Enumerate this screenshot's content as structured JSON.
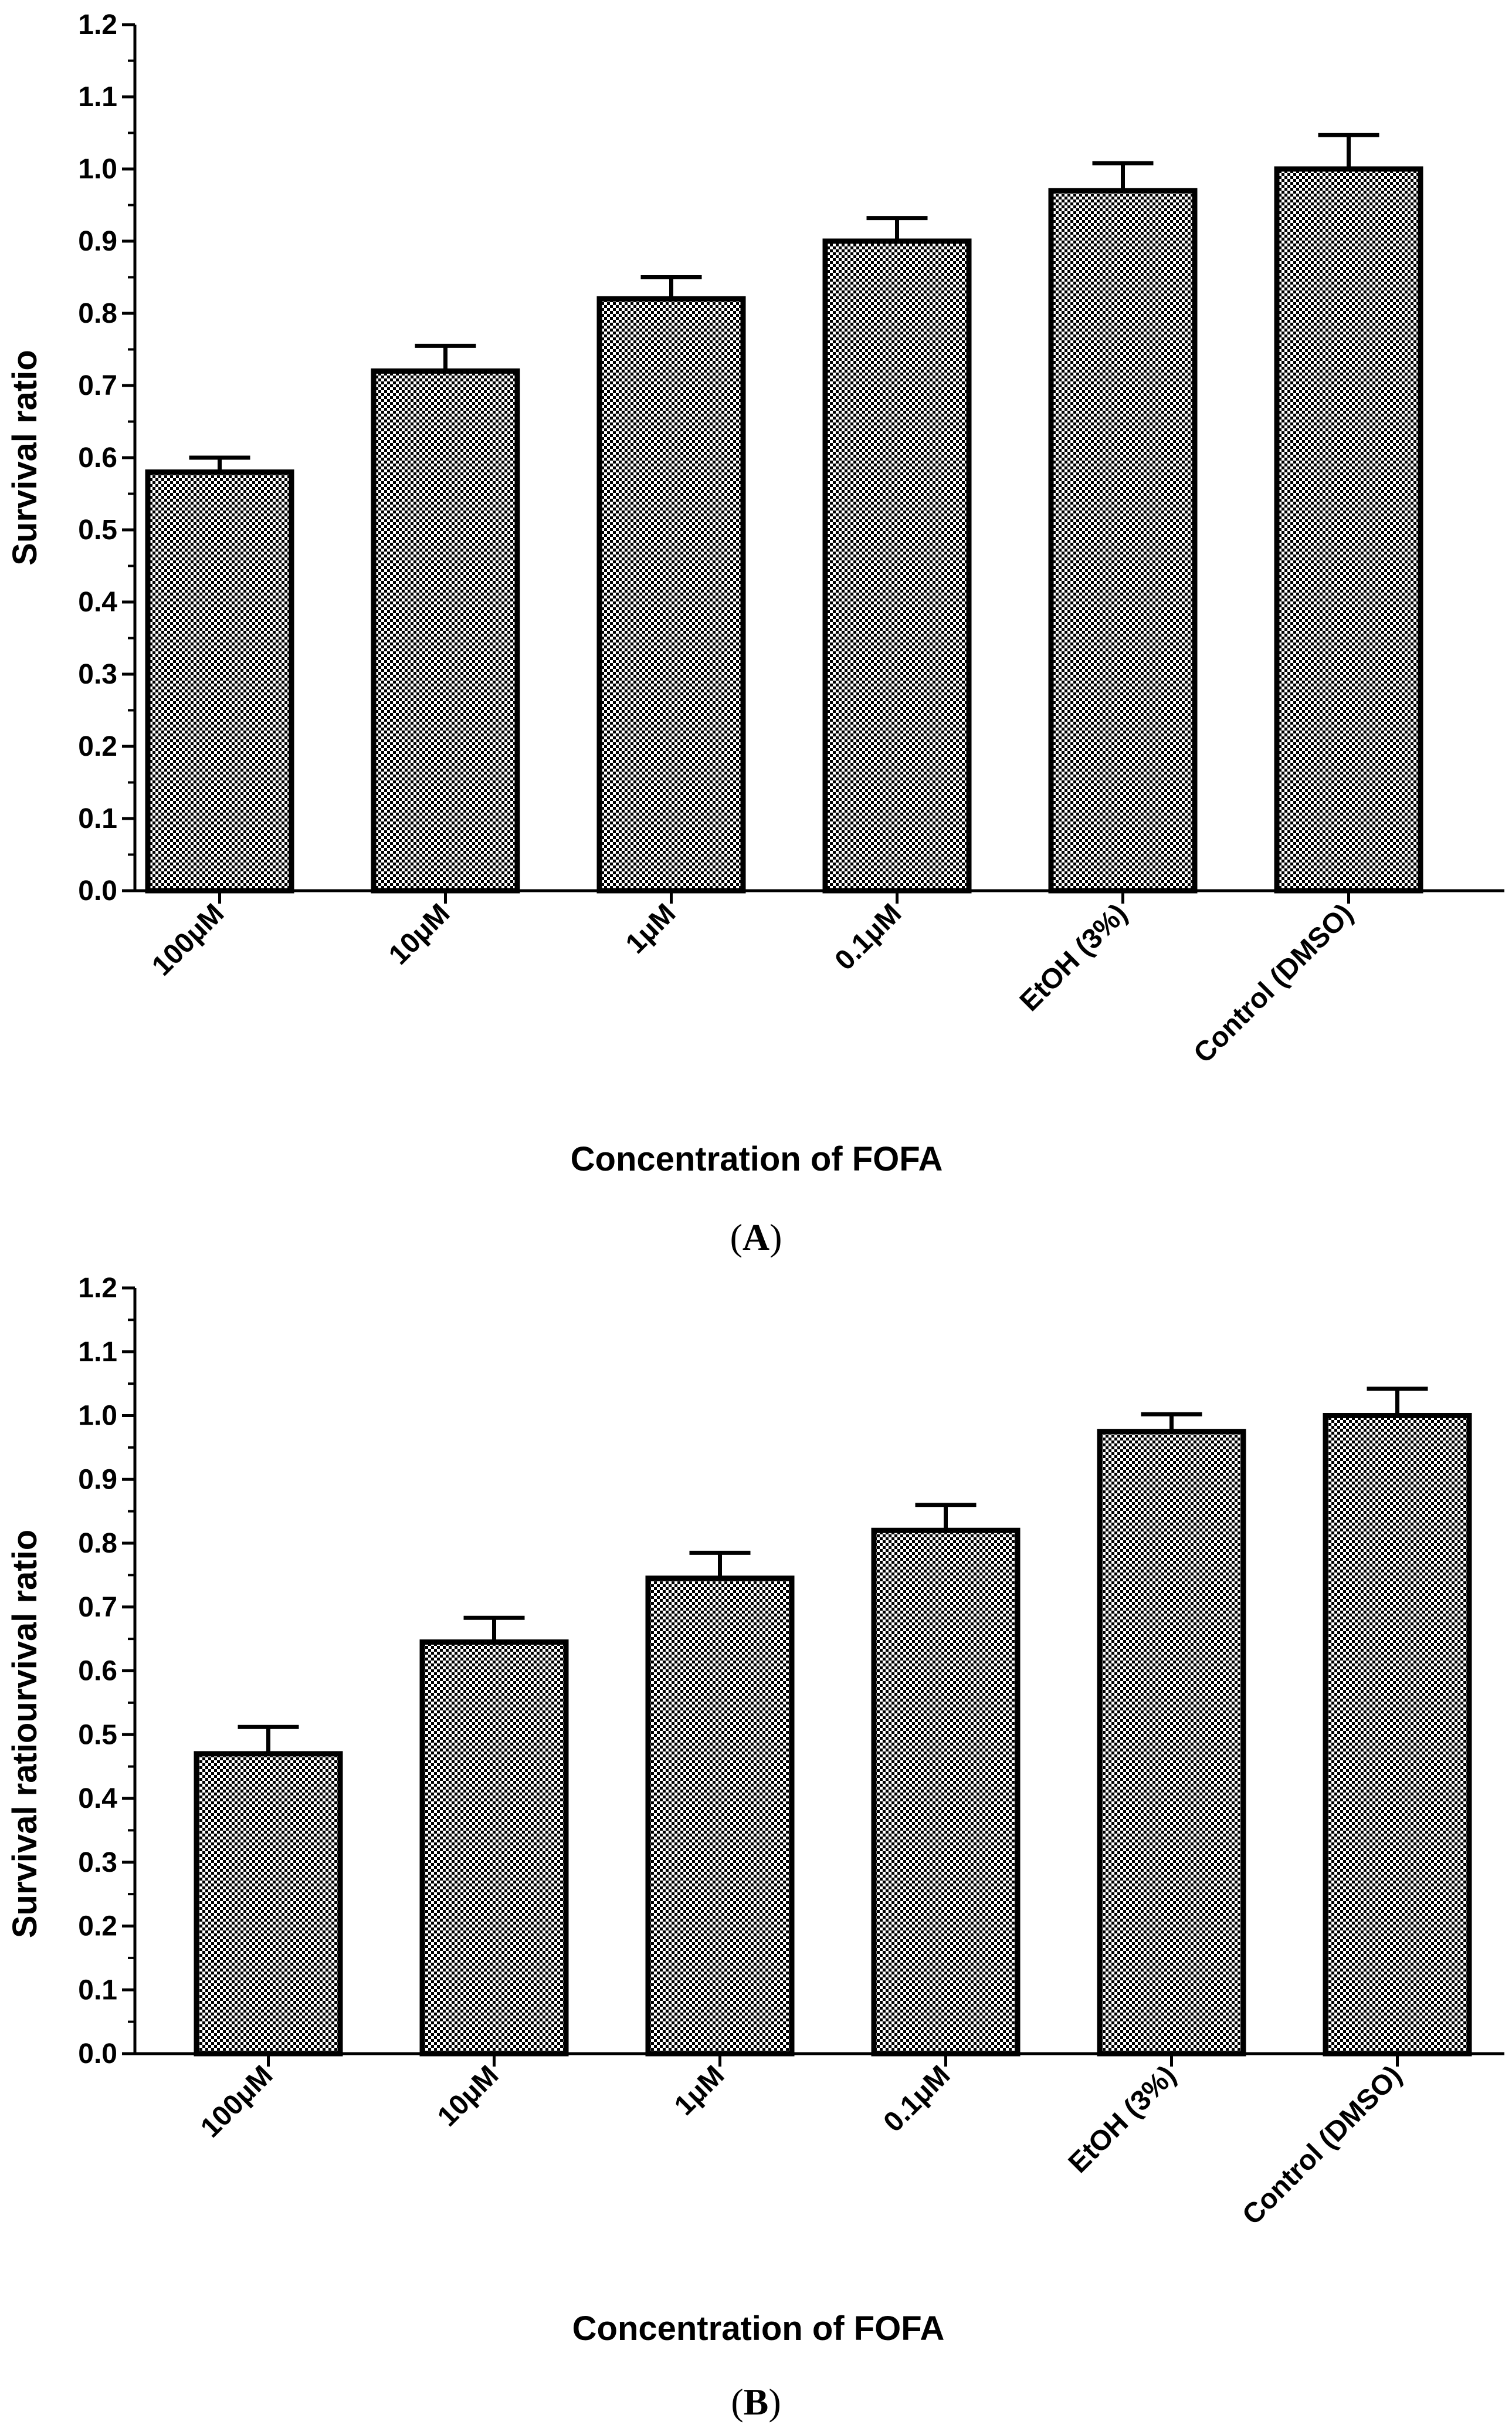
{
  "figure": {
    "pattern_color": "#000000",
    "background_color": "#ffffff"
  },
  "chart_data": [
    {
      "type": "bar",
      "panel": "A",
      "panel_label": {
        "open": "(",
        "letter": "A",
        "close": ")"
      },
      "title": "",
      "xlabel": "Concentration of FOFA",
      "ylabel": "Survival ratio",
      "ylim": [
        0,
        1.2
      ],
      "yticks": [
        "0.0",
        "0.1",
        "0.2",
        "0.3",
        "0.4",
        "0.5",
        "0.6",
        "0.7",
        "0.8",
        "0.9",
        "1.0",
        "1.1",
        "1.2"
      ],
      "ytick_values": [
        0,
        0.1,
        0.2,
        0.3,
        0.4,
        0.5,
        0.6,
        0.7,
        0.8,
        0.9,
        1.0,
        1.1,
        1.2
      ],
      "categories": [
        "100μM",
        "10μM",
        "1μM",
        "0.1μM",
        "EtOH (3%)",
        "Control (DMSO)"
      ],
      "values": [
        0.58,
        0.72,
        0.82,
        0.9,
        0.97,
        1.0
      ],
      "errors": [
        0.02,
        0.035,
        0.03,
        0.032,
        0.038,
        0.047
      ]
    },
    {
      "type": "bar",
      "panel": "B",
      "panel_label": {
        "open": "(",
        "letter": "B",
        "close": ")"
      },
      "title": "",
      "xlabel": "Concentration of FOFA",
      "ylabel": "Survival ratiourvival ratio",
      "ylim": [
        0,
        1.2
      ],
      "yticks": [
        "0.0",
        "0.1",
        "0.2",
        "0.3",
        "0.4",
        "0.5",
        "0.6",
        "0.7",
        "0.8",
        "0.9",
        "1.0",
        "1.1",
        "1.2"
      ],
      "ytick_values": [
        0,
        0.1,
        0.2,
        0.3,
        0.4,
        0.5,
        0.6,
        0.7,
        0.8,
        0.9,
        1.0,
        1.1,
        1.2
      ],
      "categories": [
        "100μM",
        "10μM",
        "1μM",
        "0.1μM",
        "EtOH (3%)",
        "Control (DMSO)"
      ],
      "values": [
        0.47,
        0.645,
        0.745,
        0.82,
        0.975,
        1.0
      ],
      "errors": [
        0.042,
        0.038,
        0.04,
        0.04,
        0.027,
        0.042
      ]
    }
  ]
}
